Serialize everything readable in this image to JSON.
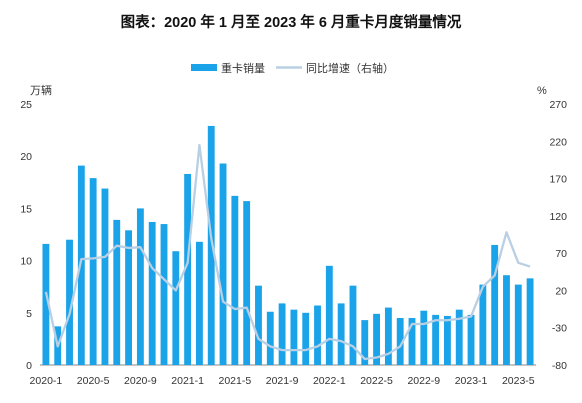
{
  "chart_data": {
    "type": "bar",
    "title": "图表：2020 年 1 月至 2023 年 6 月重卡月度销量情况",
    "left_unit": "万辆",
    "right_unit": "%",
    "ylim_left": [
      0,
      25
    ],
    "yticks_left": [
      0,
      5,
      10,
      15,
      20,
      25
    ],
    "ylim_right": [
      -80,
      270
    ],
    "yticks_right": [
      -80,
      -30,
      20,
      70,
      120,
      170,
      220,
      270
    ],
    "x_tick_labels": [
      "2020-1",
      "2020-5",
      "2020-9",
      "2021-1",
      "2021-5",
      "2021-9",
      "2022-1",
      "2022-5",
      "2022-9",
      "2023-1",
      "2023-5"
    ],
    "x_tick_label_indices": [
      0,
      4,
      8,
      12,
      16,
      20,
      24,
      28,
      32,
      36,
      40
    ],
    "grid": false,
    "legend_position": "top-center",
    "series": [
      {
        "name": "重卡销量",
        "type": "bar",
        "axis": "left",
        "color": "#1aa3e8",
        "values": [
          11.6,
          3.7,
          12.0,
          19.1,
          17.9,
          16.9,
          13.9,
          12.9,
          15.0,
          13.7,
          13.5,
          10.9,
          18.3,
          11.8,
          22.9,
          19.3,
          16.2,
          15.7,
          7.6,
          5.1,
          5.9,
          5.3,
          5.0,
          5.7,
          9.5,
          5.9,
          7.6,
          4.3,
          4.9,
          5.5,
          4.5,
          4.5,
          5.2,
          4.8,
          4.7,
          5.3,
          4.8,
          7.7,
          11.5,
          8.6,
          7.7,
          8.3
        ]
      },
      {
        "name": "同比增速（右轴）",
        "type": "line",
        "axis": "right",
        "color": "#b8cfe4",
        "values": [
          18,
          -55,
          -12,
          62,
          63,
          65,
          80,
          77,
          78,
          50,
          35,
          20,
          57,
          215,
          90,
          5,
          -5,
          -3,
          -45,
          -55,
          -60,
          -60,
          -60,
          -55,
          -45,
          -48,
          -55,
          -72,
          -70,
          -65,
          -55,
          -25,
          -25,
          -20,
          -20,
          -18,
          -15,
          25,
          40,
          98,
          57,
          52
        ]
      }
    ]
  }
}
